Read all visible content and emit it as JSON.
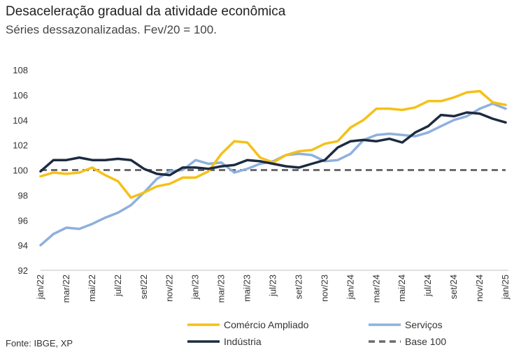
{
  "title": "Desaceleração gradual da atividade econômica",
  "subtitle": "Séries dessazonalizadas. Fev/20 = 100.",
  "source": "Fonte: IBGE, XP",
  "colors": {
    "comercio": "#f5c018",
    "servicos": "#8fb0dc",
    "industria": "#1d2b3f",
    "base": "#6b6b6b"
  },
  "chart_data": {
    "type": "line",
    "ylim": [
      92,
      108
    ],
    "yticks": [
      92,
      94,
      96,
      98,
      100,
      102,
      104,
      106,
      108
    ],
    "x": [
      "jan/22",
      "fev/22",
      "mar/22",
      "abr/22",
      "mai/22",
      "jun/22",
      "jul/22",
      "ago/22",
      "set/22",
      "out/22",
      "nov/22",
      "dez/22",
      "jan/23",
      "fev/23",
      "mar/23",
      "abr/23",
      "mai/23",
      "jun/23",
      "jul/23",
      "ago/23",
      "set/23",
      "out/23",
      "nov/23",
      "dez/23",
      "jan/24",
      "fev/24",
      "mar/24",
      "abr/24",
      "mai/24",
      "jun/24",
      "jul/24",
      "ago/24",
      "set/24",
      "out/24",
      "nov/24",
      "dez/24",
      "jan/25"
    ],
    "xtick_labels": [
      "jan/22",
      "mar/22",
      "mai/22",
      "jul/22",
      "set/22",
      "nov/22",
      "jan/23",
      "mar/23",
      "mai/23",
      "jul/23",
      "set/23",
      "nov/23",
      "jan/24",
      "mar/24",
      "mai/24",
      "jul/24",
      "set/24",
      "nov/24",
      "jan/25"
    ],
    "series": [
      {
        "name": "Comércio Ampliado",
        "color_key": "comercio",
        "dashed": false,
        "values": [
          99.5,
          99.8,
          99.7,
          99.8,
          100.2,
          99.6,
          99.1,
          97.8,
          98.2,
          98.7,
          98.9,
          99.4,
          99.4,
          99.9,
          101.3,
          102.3,
          102.2,
          101.0,
          100.6,
          101.2,
          101.5,
          101.6,
          102.1,
          102.3,
          103.4,
          104.0,
          104.9,
          104.9,
          104.8,
          105.0,
          105.5,
          105.5,
          105.8,
          106.2,
          106.3,
          105.4,
          105.2
        ]
      },
      {
        "name": "Serviços",
        "color_key": "servicos",
        "dashed": false,
        "values": [
          94.0,
          94.9,
          95.4,
          95.3,
          95.7,
          96.2,
          96.6,
          97.2,
          98.2,
          99.3,
          99.9,
          100.0,
          100.8,
          100.5,
          100.6,
          99.8,
          100.1,
          100.5,
          100.7,
          101.2,
          101.3,
          101.2,
          100.7,
          100.8,
          101.3,
          102.4,
          102.8,
          102.9,
          102.8,
          102.7,
          103.0,
          103.5,
          104.0,
          104.3,
          104.9,
          105.3,
          104.9
        ]
      },
      {
        "name": "Indústria",
        "color_key": "industria",
        "dashed": false,
        "values": [
          99.9,
          100.8,
          100.8,
          101.0,
          100.8,
          100.8,
          100.9,
          100.8,
          100.1,
          99.7,
          99.6,
          100.2,
          100.2,
          100.1,
          100.3,
          100.4,
          100.8,
          100.7,
          100.5,
          100.3,
          100.2,
          100.5,
          100.8,
          101.8,
          102.3,
          102.4,
          102.3,
          102.5,
          102.2,
          103.0,
          103.5,
          104.4,
          104.3,
          104.6,
          104.5,
          104.1,
          103.8
        ]
      },
      {
        "name": "Base 100",
        "color_key": "base",
        "dashed": true,
        "values": [
          100,
          100,
          100,
          100,
          100,
          100,
          100,
          100,
          100,
          100,
          100,
          100,
          100,
          100,
          100,
          100,
          100,
          100,
          100,
          100,
          100,
          100,
          100,
          100,
          100,
          100,
          100,
          100,
          100,
          100,
          100,
          100,
          100,
          100,
          100,
          100,
          100
        ]
      }
    ],
    "legend": [
      "Comércio Ampliado",
      "Serviços",
      "Indústria",
      "Base 100"
    ],
    "legend_position": "bottom",
    "grid": false
  }
}
